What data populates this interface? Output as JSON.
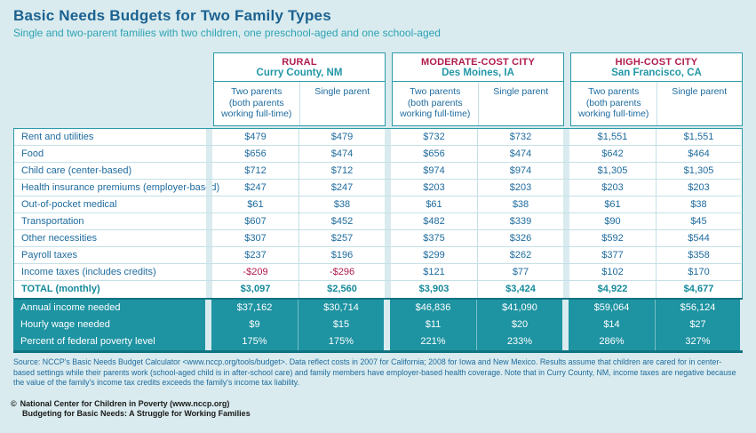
{
  "page": {
    "title": "Basic Needs Budgets for Two Family Types",
    "subtitle": "Single and two-parent families with two children, one preschool-aged and one school-aged",
    "source_note": "Source: NCCP's Basic Needs Budget Calculator <www.nccp.org/tools/budget>. Data reflect costs in 2007 for California; 2008 for Iowa and New Mexico. Results assume that children are cared for in center-based settings while their parents work (school-aged child is in after-school care) and family members have employer-based health coverage. Note that in Curry County, NM, income taxes are negative because the value of the family's income tax credits exceeds the family's income tax liability.",
    "copyright_mark": "©",
    "org_line": "National Center for Children in Poverty (www.nccp.org)",
    "report_line": "Budgeting for Basic Needs: A Struggle for Working Families"
  },
  "colors": {
    "page_background": "#d9ebee",
    "table_border_teal": "#2a9aa9",
    "footer_teal": "#1e93a2",
    "footer_dark_edge": "#0f7381",
    "text_blue": "#1e6b9e",
    "title_blue": "#1c6291",
    "accent_crimson": "#b01c4b",
    "total_teal": "#13899a"
  },
  "table": {
    "groups": [
      {
        "type": "RURAL",
        "location": "Curry County, NM"
      },
      {
        "type": "MODERATE-COST CITY",
        "location": "Des Moines, IA"
      },
      {
        "type": "HIGH-COST CITY",
        "location": "San Francisco, CA"
      }
    ],
    "col_two_parents": "Two parents\n(both parents\nworking full-time)",
    "col_single_parent": "Single parent",
    "rows": [
      {
        "label": "Rent and utilities",
        "values": [
          "$479",
          "$479",
          "$732",
          "$732",
          "$1,551",
          "$1,551"
        ]
      },
      {
        "label": "Food",
        "values": [
          "$656",
          "$474",
          "$656",
          "$474",
          "$642",
          "$464"
        ]
      },
      {
        "label": "Child care (center-based)",
        "values": [
          "$712",
          "$712",
          "$974",
          "$974",
          "$1,305",
          "$1,305"
        ]
      },
      {
        "label": "Health insurance premiums (employer-based)",
        "values": [
          "$247",
          "$247",
          "$203",
          "$203",
          "$203",
          "$203"
        ]
      },
      {
        "label": "Out-of-pocket medical",
        "values": [
          "$61",
          "$38",
          "$61",
          "$38",
          "$61",
          "$38"
        ]
      },
      {
        "label": "Transportation",
        "values": [
          "$607",
          "$452",
          "$482",
          "$339",
          "$90",
          "$45"
        ]
      },
      {
        "label": "Other necessities",
        "values": [
          "$307",
          "$257",
          "$375",
          "$326",
          "$592",
          "$544"
        ]
      },
      {
        "label": "Payroll taxes",
        "values": [
          "$237",
          "$196",
          "$299",
          "$262",
          "$377",
          "$358"
        ]
      },
      {
        "label": "Income taxes (includes credits)",
        "values": [
          "-$209",
          "-$296",
          "$121",
          "$77",
          "$102",
          "$170"
        ]
      },
      {
        "label": "TOTAL (monthly)",
        "values": [
          "$3,097",
          "$2,560",
          "$3,903",
          "$3,424",
          "$4,922",
          "$4,677"
        ]
      }
    ],
    "footer_rows": [
      {
        "label": "Annual income needed",
        "values": [
          "$37,162",
          "$30,714",
          "$46,836",
          "$41,090",
          "$59,064",
          "$56,124"
        ]
      },
      {
        "label": "Hourly wage needed",
        "values": [
          "$9",
          "$15",
          "$11",
          "$20",
          "$14",
          "$27"
        ]
      },
      {
        "label": "Percent of federal poverty level",
        "values": [
          "175%",
          "175%",
          "221%",
          "233%",
          "286%",
          "327%"
        ]
      }
    ]
  }
}
